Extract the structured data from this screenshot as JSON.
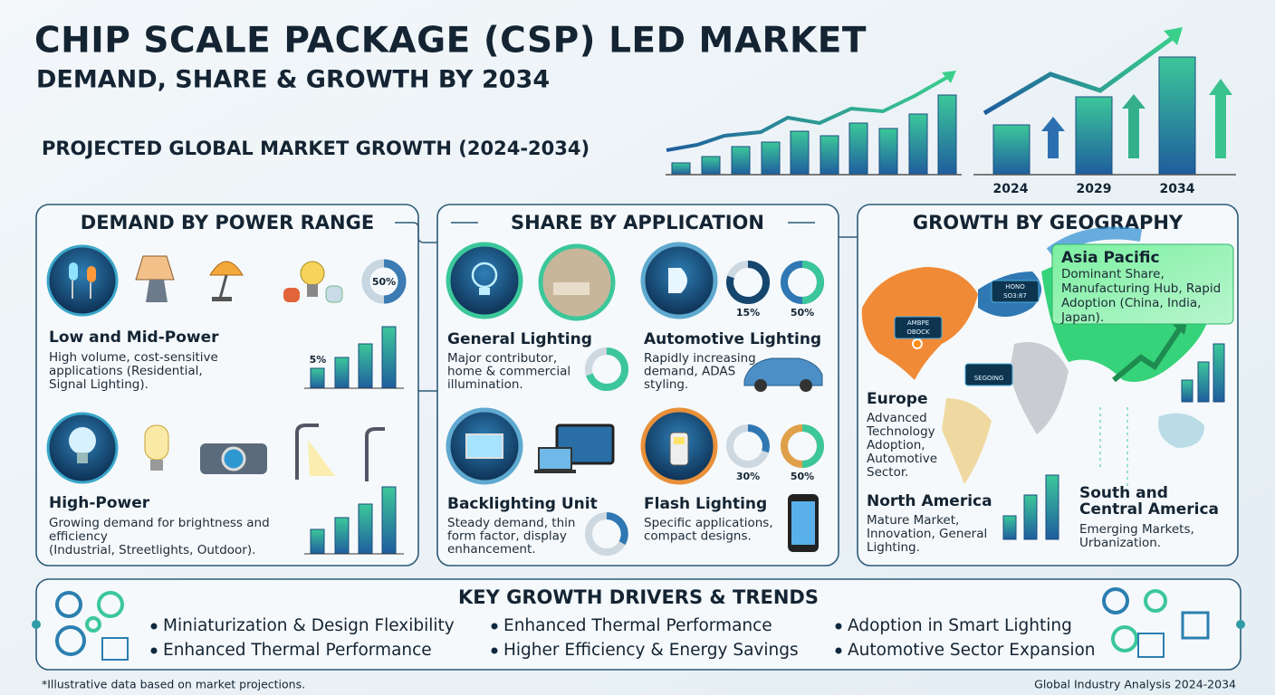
{
  "header": {
    "title": "CHIP SCALE PACKAGE (CSP) LED  MARKET",
    "subtitle": "DEMAND, SHARE & GROWTH BY 2034"
  },
  "growth": {
    "title": "PROJECTED GLOBAL MARKET GROWTH (2024-2034)",
    "years": [
      "2024",
      "2029",
      "2034"
    ]
  },
  "power": {
    "title": "DEMAND BY POWER RANGE",
    "items": [
      {
        "title": "Low and Mid-Power",
        "text": [
          "High volume, cost-sensitive",
          "applications (Residential,",
          "Signal Lighting)."
        ],
        "labels": [
          "50%",
          "5%"
        ]
      },
      {
        "title": "High-Power",
        "text": [
          "Growing demand for brightness and",
          "efficiency",
          "(Industrial, Streetlights, Outdoor)."
        ]
      }
    ]
  },
  "application": {
    "title": "SHARE BY APPLICATION",
    "items": [
      {
        "title": "General Lighting",
        "text": [
          "Major contributor,",
          "home & commercial",
          "illumination."
        ]
      },
      {
        "title": "Automotive Lighting",
        "text": [
          "Rapidly increasing",
          "demand, ADAS",
          "styling."
        ],
        "labels": [
          "15%",
          "50%"
        ]
      },
      {
        "title": "Backlighting Unit",
        "text": [
          "Steady demand, thin",
          "form factor, display",
          "enhancement."
        ]
      },
      {
        "title": "Flash Lighting",
        "text": [
          "Specific applications,",
          "compact designs."
        ],
        "labels": [
          "30%",
          "50%"
        ]
      }
    ]
  },
  "geography": {
    "title": "GROWTH BY GEOGRAPHY",
    "regions": [
      {
        "title": [
          "Asia Pacific"
        ],
        "text": [
          "Dominant Share,",
          "Manufacturing Hub, Rapid",
          "Adoption (China, India,",
          "Japan)."
        ]
      },
      {
        "title": [
          "Europe"
        ],
        "text": [
          "Advanced",
          "Technology",
          "Adoption,",
          "Automotive",
          "Sector."
        ]
      },
      {
        "title": [
          "North America"
        ],
        "text": [
          "Mature Market,",
          "Innovation, General",
          "Lighting."
        ]
      },
      {
        "title": [
          "South and",
          "Central America"
        ],
        "text": [
          "Emerging Markets,",
          "Urbanization."
        ]
      }
    ],
    "map_tags": [
      "AMBPE",
      "OBOCK",
      "SEGOING",
      "HONO",
      "SO3:87"
    ]
  },
  "drivers": {
    "title": "KEY GROWTH DRIVERS & TRENDS",
    "items": [
      "Miniaturization & Design Flexibility",
      "Enhanced Thermal Performance",
      "Enhanced Thermal Performance",
      "Higher Efficiency & Energy Savings",
      "Adoption in Smart Lighting",
      "Automotive Sector Expansion"
    ]
  },
  "footer": {
    "note": "*Illustrative data based on market projections.",
    "source": "Global Industry Analysis 2024-2034"
  }
}
